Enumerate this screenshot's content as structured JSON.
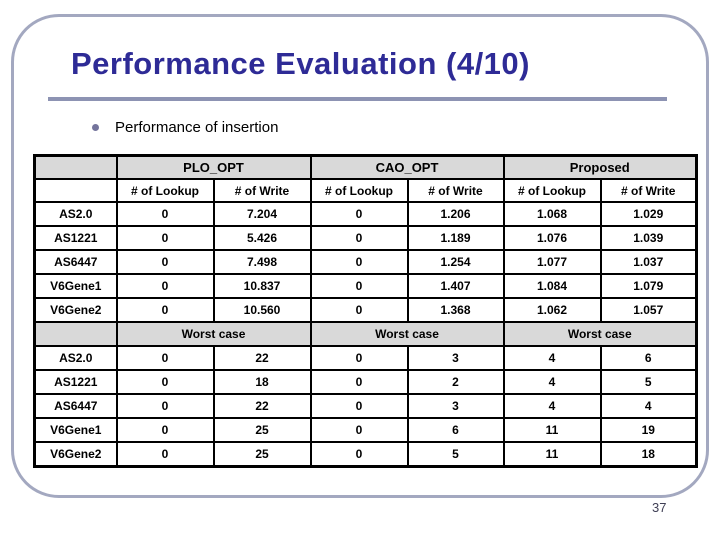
{
  "slide": {
    "title": "Performance Evaluation (4/10)",
    "bullet_text": "Performance of insertion",
    "page_number": "37"
  },
  "table": {
    "group_headers": [
      "PLO_OPT",
      "CAO_OPT",
      "Proposed"
    ],
    "sub_headers": [
      "# of Lookup",
      "# of Write"
    ],
    "worst_case_label": "Worst case",
    "average_rows": [
      {
        "name": "AS2.0",
        "values": [
          "0",
          "7.204",
          "0",
          "1.206",
          "1.068",
          "1.029"
        ]
      },
      {
        "name": "AS1221",
        "values": [
          "0",
          "5.426",
          "0",
          "1.189",
          "1.076",
          "1.039"
        ]
      },
      {
        "name": "AS6447",
        "values": [
          "0",
          "7.498",
          "0",
          "1.254",
          "1.077",
          "1.037"
        ]
      },
      {
        "name": "V6Gene1",
        "values": [
          "0",
          "10.837",
          "0",
          "1.407",
          "1.084",
          "1.079"
        ]
      },
      {
        "name": "V6Gene2",
        "values": [
          "0",
          "10.560",
          "0",
          "1.368",
          "1.062",
          "1.057"
        ]
      }
    ],
    "worst_rows": [
      {
        "name": "AS2.0",
        "values": [
          "0",
          "22",
          "0",
          "3",
          "4",
          "6"
        ]
      },
      {
        "name": "AS1221",
        "values": [
          "0",
          "18",
          "0",
          "2",
          "4",
          "5"
        ]
      },
      {
        "name": "AS6447",
        "values": [
          "0",
          "22",
          "0",
          "3",
          "4",
          "4"
        ]
      },
      {
        "name": "V6Gene1",
        "values": [
          "0",
          "25",
          "0",
          "6",
          "11",
          "19"
        ]
      },
      {
        "name": "V6Gene2",
        "values": [
          "0",
          "25",
          "0",
          "5",
          "11",
          "18"
        ]
      }
    ]
  },
  "theme": {
    "title_color": "#2e2b96",
    "rule_color": "#8d93b3",
    "frame_border_color": "#a3a8c0",
    "bullet_color": "#74749c",
    "table_header_bg": "#d9d9d9",
    "table_border_color": "#000000",
    "page_number_color": "#3f3f55"
  }
}
